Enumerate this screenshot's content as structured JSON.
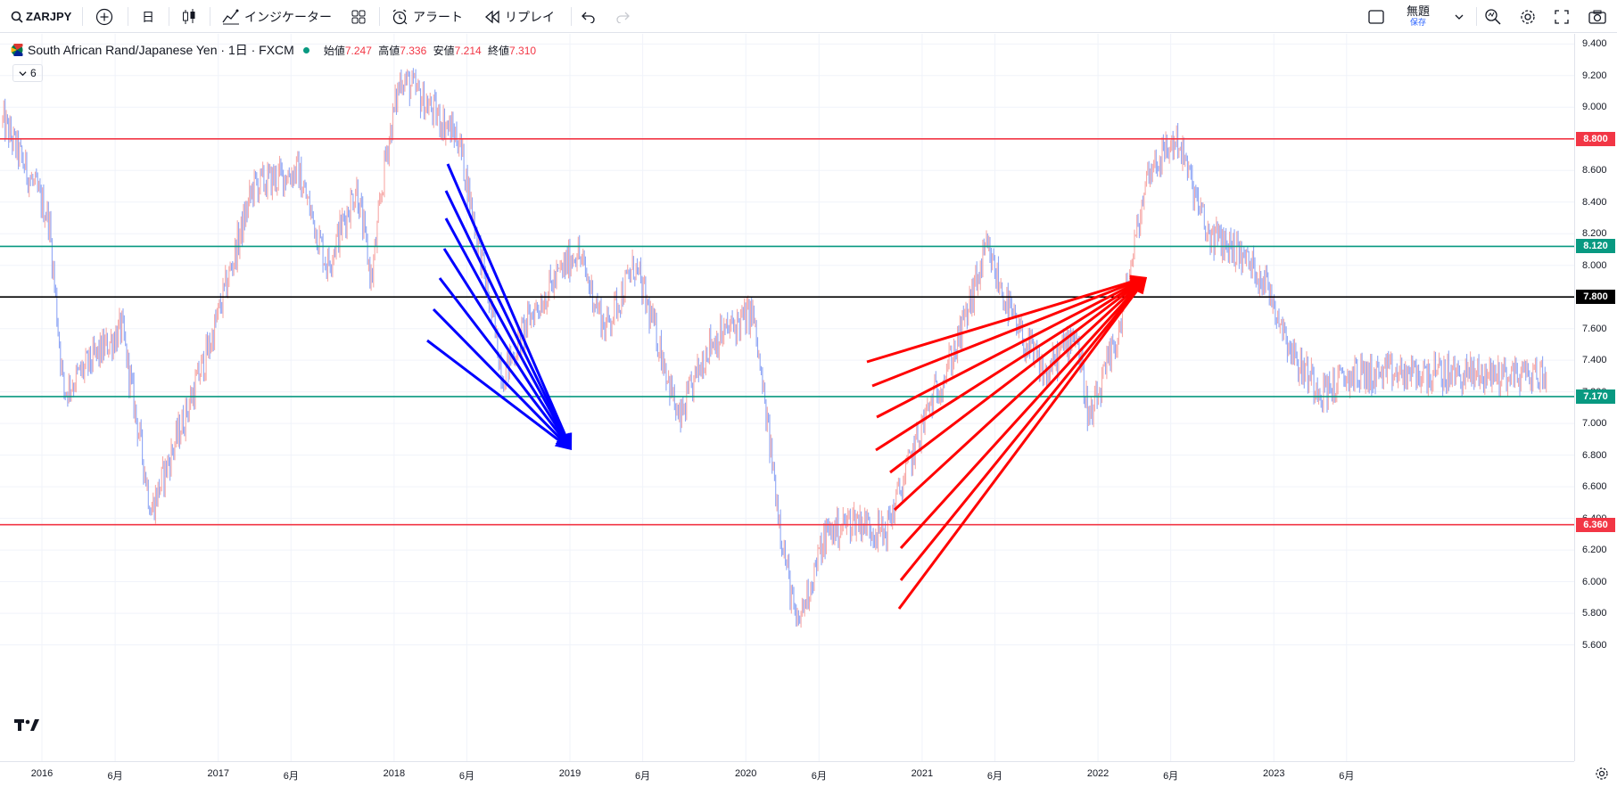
{
  "toolbar": {
    "symbol": "ZARJPY",
    "interval": "日",
    "indicators_label": "インジケーター",
    "alerts_label": "アラート",
    "replay_label": "リプレイ",
    "layout_name": "無題",
    "save_label": "保存"
  },
  "legend": {
    "title": "South African Rand/Japanese Yen · 1日 · FXCM",
    "open_label": "始値",
    "open": "7.247",
    "high_label": "高値",
    "high": "7.336",
    "low_label": "安値",
    "low": "7.214",
    "close_label": "終値",
    "close": "7.310",
    "collapsed_count": "6"
  },
  "colors": {
    "up": "#f7a9a7",
    "down": "#8fa6f5",
    "support_red": "#f23645",
    "level_green": "#089981",
    "level_black": "#000000",
    "arrow_blue": "#0000ff",
    "arrow_red": "#ff0000"
  },
  "price_axis": {
    "ticks": [
      "9.400",
      "9.200",
      "9.000",
      "8.800",
      "8.600",
      "8.400",
      "8.200",
      "8.000",
      "7.800",
      "7.600",
      "7.400",
      "7.200",
      "7.000",
      "6.800",
      "6.600",
      "6.400",
      "6.200",
      "6.000",
      "5.800",
      "5.600"
    ],
    "level_labels": [
      "8.800",
      "8.120",
      "7.800",
      "7.170",
      "6.360"
    ]
  },
  "time_axis": {
    "labels": [
      "2016",
      "6月",
      "2017",
      "6月",
      "2018",
      "6月",
      "2019",
      "6月",
      "2020",
      "6月",
      "2021",
      "6月",
      "2022",
      "6月",
      "2023",
      "6月"
    ]
  },
  "chart_data": {
    "type": "line",
    "title": "South African Rand/Japanese Yen · 1日 · FXCM",
    "x": [
      "2015-10",
      "2016-01",
      "2016-02",
      "2016-06",
      "2016-08",
      "2016-12",
      "2017-03",
      "2017-06",
      "2017-08",
      "2017-10",
      "2017-11",
      "2017-12",
      "2018-01",
      "2018-03",
      "2018-05",
      "2018-06",
      "2018-08",
      "2018-10",
      "2019-01",
      "2019-03",
      "2019-05",
      "2019-07",
      "2019-08",
      "2019-10",
      "2020-01",
      "2020-03",
      "2020-04",
      "2020-06",
      "2020-08",
      "2020-10",
      "2021-01",
      "2021-03",
      "2021-05",
      "2021-07",
      "2021-09",
      "2021-11",
      "2021-12",
      "2022-02",
      "2022-04",
      "2022-06",
      "2022-08",
      "2022-10",
      "2022-12",
      "2023-02",
      "2023-04",
      "2023-06"
    ],
    "y": [
      8.9,
      8.3,
      7.2,
      7.6,
      6.45,
      7.5,
      8.5,
      8.6,
      8.0,
      8.5,
      7.9,
      8.7,
      9.2,
      9.0,
      8.8,
      8.3,
      7.3,
      7.7,
      8.1,
      7.6,
      8.0,
      7.4,
      7.0,
      7.5,
      7.7,
      6.3,
      5.7,
      6.3,
      6.4,
      6.3,
      7.1,
      7.5,
      8.1,
      7.6,
      7.3,
      7.6,
      7.0,
      7.6,
      8.6,
      8.8,
      8.2,
      8.1,
      7.9,
      7.4,
      7.2,
      7.31
    ],
    "horizontal_levels": [
      8.8,
      8.12,
      7.8,
      7.17,
      6.36
    ],
    "ylim": [
      5.5,
      9.5
    ],
    "xlabel": "",
    "ylabel": ""
  }
}
